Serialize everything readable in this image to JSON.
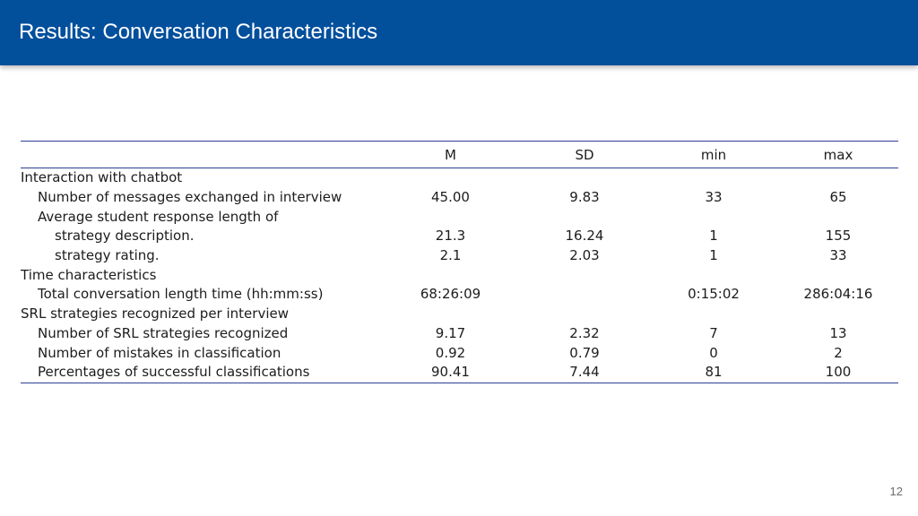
{
  "slide": {
    "title": "Results: Conversation Characteristics",
    "page_number": "12"
  },
  "table": {
    "headers": [
      "",
      "M",
      "SD",
      "min",
      "max"
    ],
    "rows": [
      {
        "label": "Interaction with chatbot",
        "level": 0,
        "M": "",
        "SD": "",
        "min": "",
        "max": ""
      },
      {
        "label": "Number of messages exchanged in interview",
        "level": 1,
        "M": "45.00",
        "SD": "9.83",
        "min": "33",
        "max": "65"
      },
      {
        "label": "Average student response length of",
        "level": 1,
        "M": "",
        "SD": "",
        "min": "",
        "max": ""
      },
      {
        "label": "strategy description.",
        "level": 2,
        "M": "21.3",
        "SD": "16.24",
        "min": "1",
        "max": "155"
      },
      {
        "label": "strategy rating.",
        "level": 2,
        "M": "2.1",
        "SD": "2.03",
        "min": "1",
        "max": "33"
      },
      {
        "label": "Time characteristics",
        "level": 0,
        "M": "",
        "SD": "",
        "min": "",
        "max": ""
      },
      {
        "label": "Total conversation length time (hh:mm:ss)",
        "level": 1,
        "M": "68:26:09",
        "SD": "",
        "min": "0:15:02",
        "max": "286:04:16"
      },
      {
        "label": "SRL strategies recognized per interview",
        "level": 0,
        "M": "",
        "SD": "",
        "min": "",
        "max": ""
      },
      {
        "label": "Number of SRL strategies recognized",
        "level": 1,
        "M": "9.17",
        "SD": "2.32",
        "min": "7",
        "max": "13"
      },
      {
        "label": "Number of mistakes in classification",
        "level": 1,
        "M": "0.92",
        "SD": "0.79",
        "min": "0",
        "max": "2"
      },
      {
        "label": "Percentages of successful classifications",
        "level": 1,
        "M": "90.41",
        "SD": "7.44",
        "min": "81",
        "max": "100"
      }
    ]
  },
  "colors": {
    "header_bg": "#024f9c",
    "rule": "#2d3f94"
  }
}
